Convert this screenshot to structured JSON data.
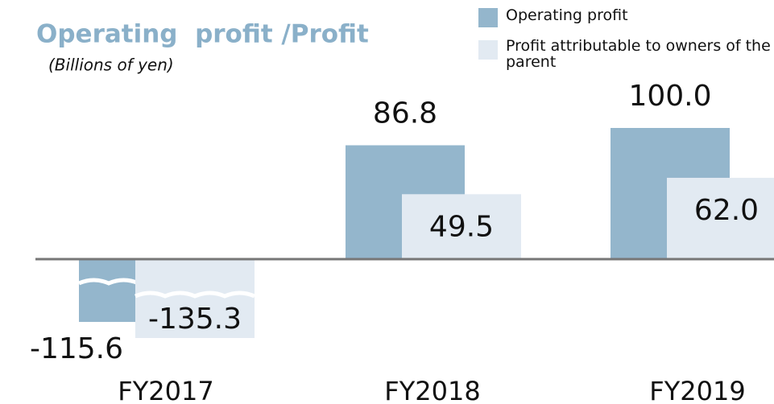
{
  "chart_data": {
    "type": "bar",
    "title": "Operating  profit /Profit",
    "subtitle": "(Billions of yen)",
    "categories": [
      "FY2017",
      "FY2018",
      "FY2019"
    ],
    "series": [
      {
        "name": "Operating profit",
        "color": "#94b6cc",
        "values": [
          -115.6,
          86.8,
          100.0
        ],
        "value_labels": [
          "-115.6",
          "86.8",
          "100.0"
        ]
      },
      {
        "name": "Profit attributable to owners of the parent",
        "color": "#e2eaf2",
        "values": [
          -135.3,
          49.5,
          62.0
        ],
        "value_labels": [
          "-135.3",
          "49.5",
          "62.0"
        ]
      }
    ],
    "axis_break": true
  }
}
